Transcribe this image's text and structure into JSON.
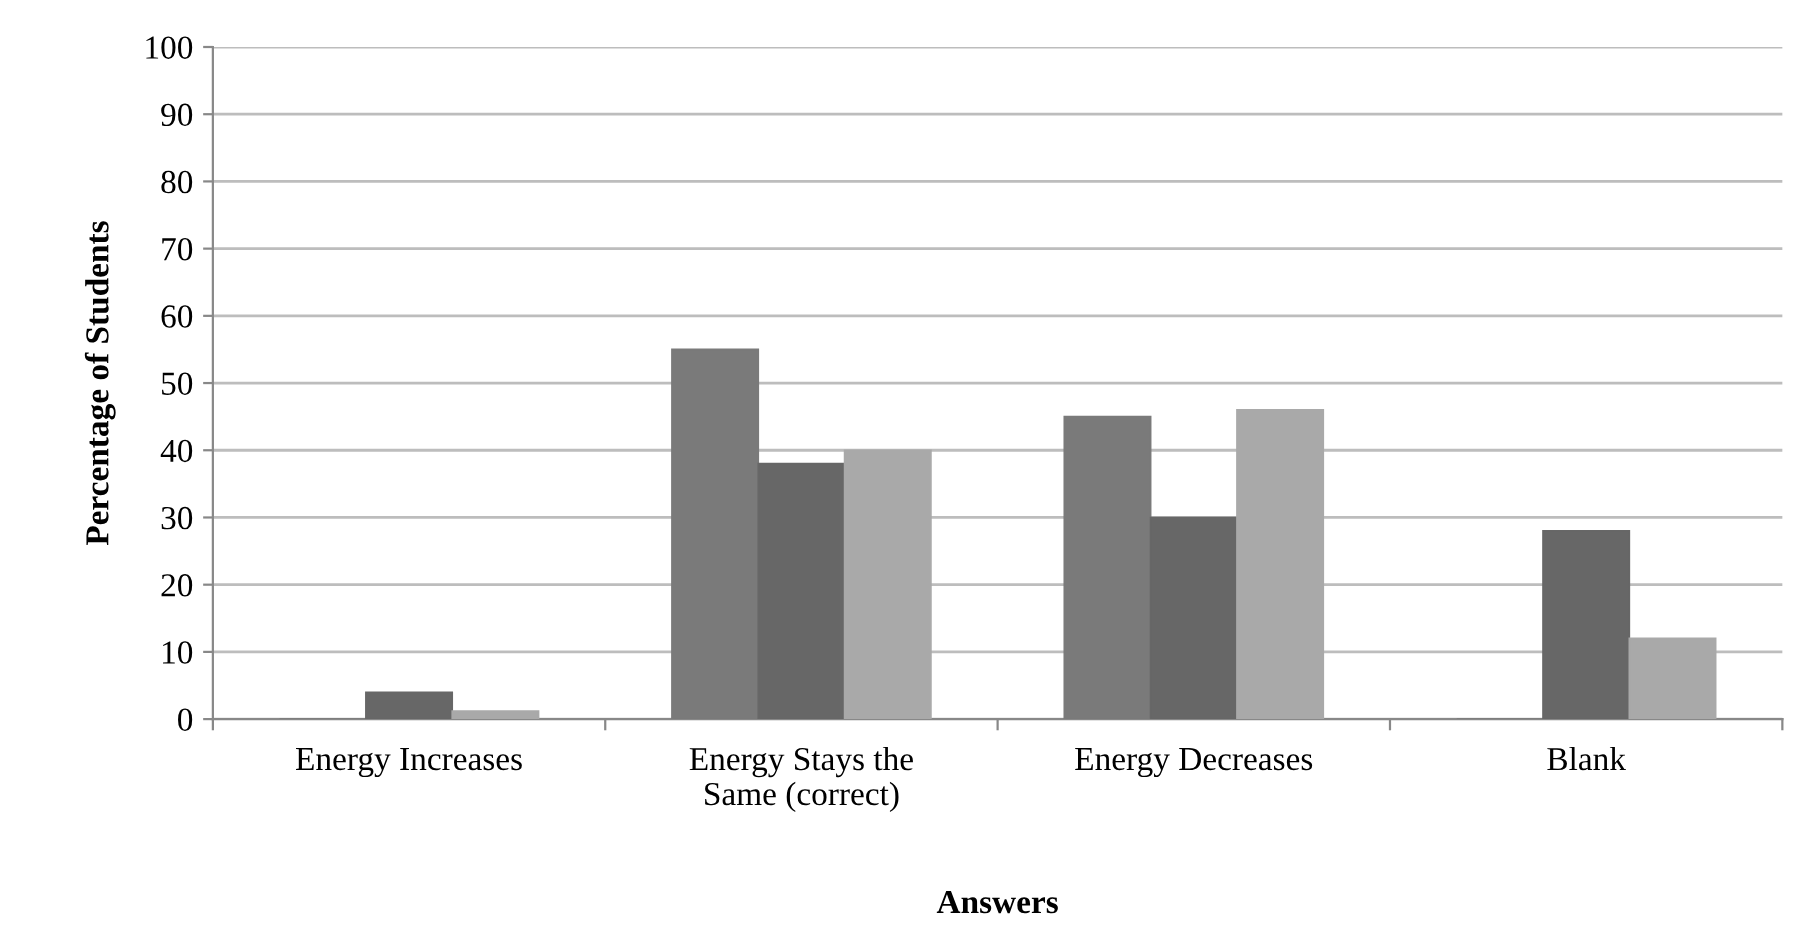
{
  "chart_data": {
    "type": "bar",
    "xlabel": "Answers",
    "ylabel": "Percentage of Students",
    "categories": [
      "Energy Increases",
      "Energy Stays the\nSame (correct)",
      "Energy Decreases",
      "Blank"
    ],
    "series": [
      {
        "color": "#7a7a7a",
        "values": [
          0,
          55,
          45,
          0
        ]
      },
      {
        "color": "#676767",
        "values": [
          4,
          38,
          30,
          28
        ]
      },
      {
        "color": "#a9a9a9",
        "values": [
          1.2,
          40,
          46,
          12
        ]
      }
    ],
    "ylim": [
      0,
      100
    ],
    "yticks": [
      0,
      10,
      20,
      30,
      40,
      50,
      60,
      70,
      80,
      90,
      100
    ],
    "grid": "y",
    "legend": false
  }
}
